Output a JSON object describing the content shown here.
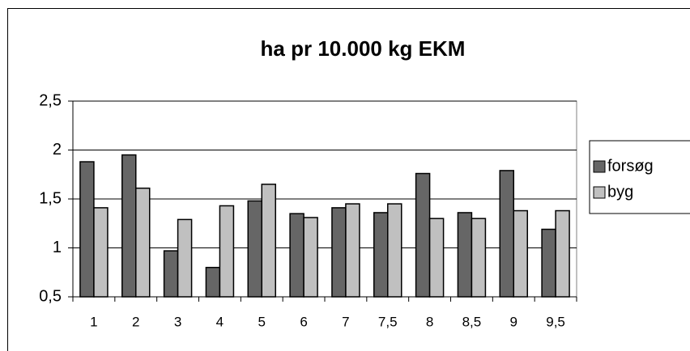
{
  "chart_data": {
    "type": "bar",
    "title": "ha pr 10.000 kg EKM",
    "categories": [
      "1",
      "2",
      "3",
      "4",
      "5",
      "6",
      "7",
      "7,5",
      "8",
      "8,5",
      "9",
      "9,5"
    ],
    "series": [
      {
        "name": "forsøg",
        "color": "#666666",
        "values": [
          1.88,
          1.95,
          0.97,
          0.8,
          1.48,
          1.35,
          1.41,
          1.36,
          1.76,
          1.36,
          1.79,
          1.19
        ]
      },
      {
        "name": "byg",
        "color": "#c0c0c0",
        "values": [
          1.41,
          1.61,
          1.29,
          1.43,
          1.65,
          1.31,
          1.45,
          1.45,
          1.3,
          1.3,
          1.38,
          1.38
        ]
      }
    ],
    "ylim": [
      0.5,
      2.5
    ],
    "yticks": [
      {
        "value": 0.5,
        "label": "0,5"
      },
      1,
      {
        "value": 1.5,
        "label": "1,5"
      },
      2,
      {
        "value": 2.5,
        "label": "2,5"
      }
    ],
    "grid": true,
    "legend": "right"
  }
}
